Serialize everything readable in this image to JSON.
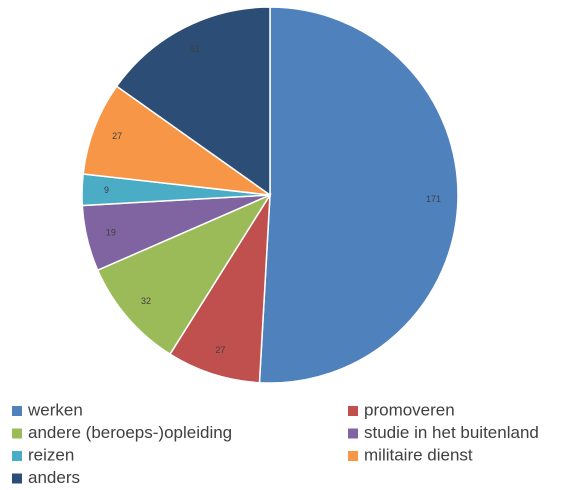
{
  "chart_data": {
    "type": "pie",
    "categories": [
      "werken",
      "promoveren",
      "andere (beroeps-)opleiding",
      "studie in het buitenland",
      "reizen",
      "militaire dienst",
      "anders"
    ],
    "values": [
      171,
      27,
      32,
      19,
      9,
      27,
      51
    ],
    "colors": [
      "#4f81bd",
      "#c0504d",
      "#9bbb59",
      "#8064a2",
      "#4bacc6",
      "#f79646",
      "#2c4d75"
    ],
    "legend": "bottom"
  }
}
